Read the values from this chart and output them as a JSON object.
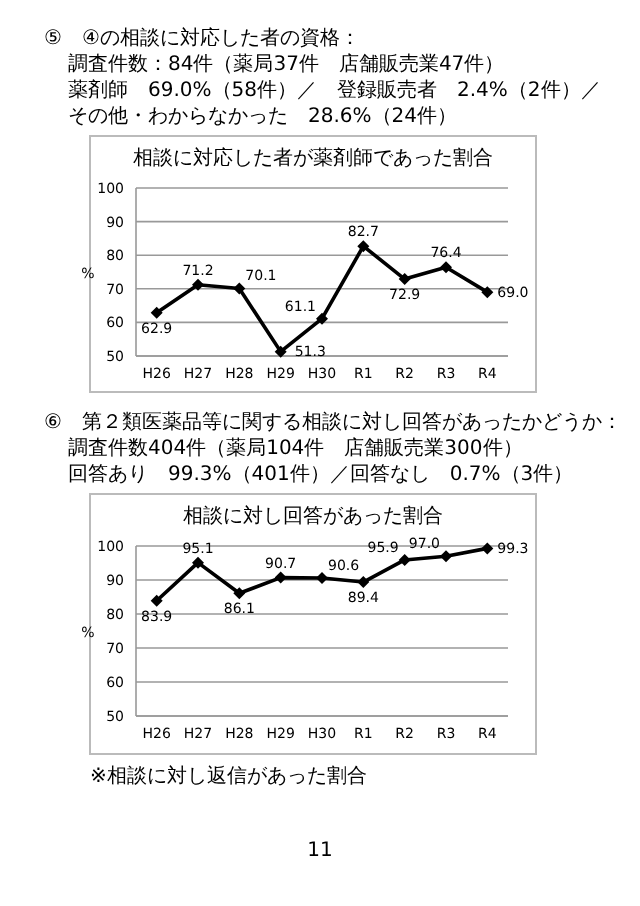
{
  "chart_data": [
    {
      "type": "line",
      "title": "相談に対応した者が薬剤師であった割合",
      "ylabel": "%",
      "annotations": [
        "⑤　④の相談に対応した者の資格：",
        "調査件数：84件（薬局37件　店舗販売業47件）",
        "薬剤師　69.0%（58件）／　登録販売者　2.4%（2件）／",
        "その他・わからなかった　28.6%（24件）"
      ],
      "categories": [
        "H26",
        "H27",
        "H28",
        "H29",
        "H30",
        "R1",
        "R2",
        "R3",
        "R4"
      ],
      "series": [
        {
          "color": "#000000",
          "values": [
            62.9,
            71.2,
            70.1,
            51.3,
            61.1,
            82.7,
            72.9,
            76.4,
            69.0
          ],
          "value_labels": [
            "62.9",
            "71.2",
            "70.1",
            "51.3",
            "61.1",
            "82.7",
            "72.9",
            "76.4",
            "69.0"
          ]
        }
      ],
      "ylim": [
        50,
        100
      ],
      "yticks": [
        50,
        60,
        70,
        80,
        90,
        100
      ],
      "grid": "y",
      "marker": "diamond",
      "line_style": "solid"
    },
    {
      "type": "line",
      "title": "相談に対し回答があった割合",
      "ylabel": "%",
      "annotations": [
        "⑥　第２類医薬品等に関する相談に対し回答があったかどうか：",
        "調査件数404件（薬局104件　店舗販売業300件）",
        "回答あり　99.3%（401件）／回答なし　0.7%（3件）",
        "※相談に対し返信があった割合",
        "11"
      ],
      "categories": [
        "H26",
        "H27",
        "H28",
        "H29",
        "H30",
        "R1",
        "R2",
        "R3",
        "R4"
      ],
      "series": [
        {
          "color": "#000000",
          "values": [
            83.9,
            95.1,
            86.1,
            90.7,
            90.6,
            89.4,
            95.9,
            97.0,
            99.3
          ],
          "value_labels": [
            "83.9",
            "95.1",
            "86.1",
            "90.7",
            "90.6",
            "89.4",
            "95.9",
            "97.0",
            "99.3"
          ]
        }
      ],
      "ylim": [
        50,
        100
      ],
      "yticks": [
        50,
        60,
        70,
        80,
        90,
        100
      ],
      "grid": "y",
      "marker": "diamond",
      "line_style": "solid"
    }
  ]
}
